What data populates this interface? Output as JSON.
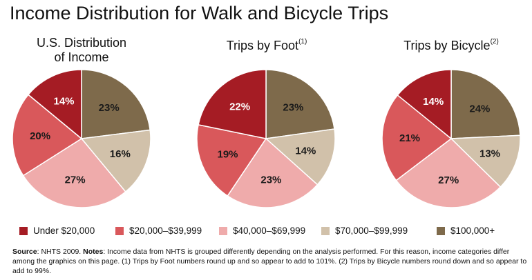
{
  "title": "Income Distribution for Walk and Bicycle Trips",
  "colors": [
    "#a51c24",
    "#d9585b",
    "#efabab",
    "#d1c1aa",
    "#7e6a4b"
  ],
  "legend": [
    "Under $20,000",
    "$20,000–$39,999",
    "$40,000–$69,999",
    "$70,000–$99,999",
    "$100,000+"
  ],
  "chart_data": [
    {
      "type": "pie",
      "title_line1": "U.S. Distribution",
      "title_line2": "of Income",
      "footnote": "",
      "categories": [
        "Under $20,000",
        "$20,000–$39,999",
        "$40,000–$69,999",
        "$70,000–$99,999",
        "$100,000+"
      ],
      "values": [
        14,
        20,
        27,
        16,
        23
      ],
      "labels": [
        "14%",
        "20%",
        "27%",
        "16%",
        "23%"
      ]
    },
    {
      "type": "pie",
      "title_line1": "Trips by Foot",
      "title_line2": "",
      "footnote": "(1)",
      "categories": [
        "Under $20,000",
        "$20,000–$39,999",
        "$40,000–$69,999",
        "$70,000–$99,999",
        "$100,000+"
      ],
      "values": [
        22,
        19,
        23,
        14,
        23
      ],
      "labels": [
        "22%",
        "19%",
        "23%",
        "14%",
        "23%"
      ]
    },
    {
      "type": "pie",
      "title_line1": "Trips by Bicycle",
      "title_line2": "",
      "footnote": "(2)",
      "categories": [
        "Under $20,000",
        "$20,000–$39,999",
        "$40,000–$69,999",
        "$70,000–$99,999",
        "$100,000+"
      ],
      "values": [
        14,
        21,
        27,
        13,
        24
      ],
      "labels": [
        "14%",
        "21%",
        "27%",
        "13%",
        "24%"
      ]
    }
  ],
  "notes": {
    "source_label": "Source",
    "source_text": ": NHTS 2009. ",
    "notes_label": "Notes",
    "notes_text": ": Income data from NHTS is grouped differently depending on the analysis performed. For this reason, income categories differ among the graphics on this page. (1) Trips by Foot numbers round up and so appear to add to 101%. (2) Trips by Bicycle numbers round down and so appear to add to 99%."
  }
}
